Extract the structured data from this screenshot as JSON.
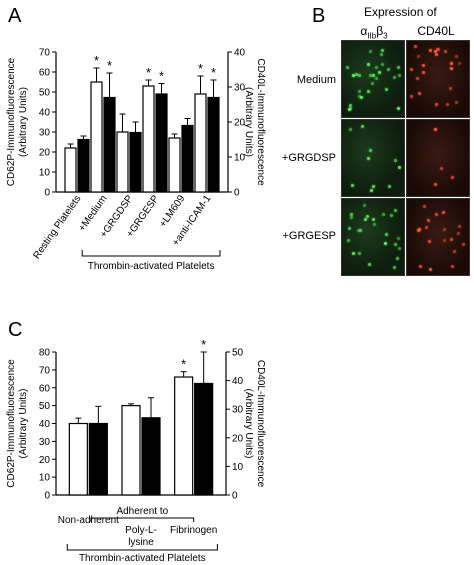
{
  "panels": {
    "a": "A",
    "b": "B",
    "c": "C"
  },
  "panel_b": {
    "header": "Expression of",
    "col_alpha": "α",
    "col_alpha_sub": "IIb",
    "col_beta": "β",
    "col_beta_sub": "3",
    "col_cd40l": "CD40L",
    "rows": [
      "Medium",
      "+GRGDSP",
      "+GRGESP"
    ]
  },
  "chart_data": [
    {
      "type": "bar",
      "categories": [
        "Resting Platelets",
        "+Medium",
        "+GRGDSP",
        "+GRGESP",
        "+LM609",
        "+anti-ICAM-1"
      ],
      "group_label": "Thrombin-activated Platelets",
      "ylabel": "CD62P-Immunofluorescence (Arbitrary Units)",
      "y2label": "CD40L-Immunofluorescence (Arbitrary Units)",
      "ylim": [
        0,
        70
      ],
      "y2lim": [
        0,
        40
      ],
      "yticks": [
        0,
        10,
        20,
        30,
        40,
        50,
        60,
        70
      ],
      "y2ticks": [
        0,
        10,
        20,
        30,
        40
      ],
      "series": [
        {
          "axis": "left",
          "fill": "#ffffff",
          "values": [
            22,
            55,
            30,
            53,
            27,
            49
          ],
          "errors": [
            2,
            7,
            9,
            3,
            2,
            9
          ]
        },
        {
          "axis": "right",
          "fill": "#000000",
          "values": [
            15,
            27,
            17,
            28,
            19,
            27
          ],
          "errors": [
            1,
            7,
            3,
            3,
            2,
            5
          ]
        }
      ],
      "significance": [
        "",
        "*",
        "",
        "*",
        "",
        "*"
      ]
    },
    {
      "type": "bar",
      "categories": [
        "Non-adherent",
        "Poly-L-lysine",
        "Fibrinogen"
      ],
      "category_lines": [
        [
          "Non-adherent"
        ],
        [
          "Poly-L-",
          "lysine"
        ],
        [
          "Fibrinogen"
        ]
      ],
      "sub_label": "Adherent to",
      "group_label": "Thrombin-activated Platelets",
      "ylabel": "CD62P-Immunofluorescence (Arbitrary Units)",
      "y2label": "CD40L-Immunofluorescence (Arbitrary Units)",
      "ylim": [
        0,
        80
      ],
      "y2lim": [
        0,
        50
      ],
      "yticks": [
        0,
        10,
        20,
        30,
        40,
        50,
        60,
        70,
        80
      ],
      "y2ticks": [
        0,
        10,
        20,
        30,
        40,
        50
      ],
      "series": [
        {
          "axis": "left",
          "fill": "#ffffff",
          "values": [
            40,
            50,
            66
          ],
          "errors": [
            3,
            1,
            3
          ]
        },
        {
          "axis": "right",
          "fill": "#000000",
          "values": [
            25,
            27,
            39
          ],
          "errors": [
            6,
            7,
            11
          ]
        }
      ],
      "significance": [
        "",
        "",
        "*"
      ]
    }
  ]
}
